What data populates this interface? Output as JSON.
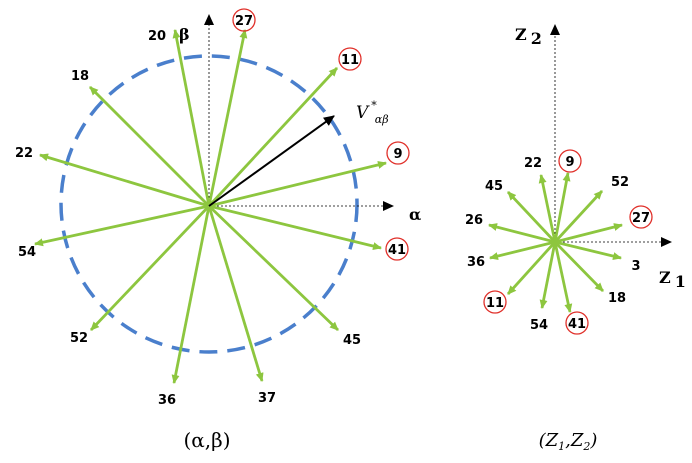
{
  "left_diagram": {
    "caption": "(α,β)",
    "axis_alpha": "α",
    "axis_beta": "β",
    "reference_vector": {
      "symbol": "V",
      "superscript": "*",
      "subscript": "αβ"
    },
    "vectors": [
      {
        "label": "27",
        "circled": true
      },
      {
        "label": "11",
        "circled": true
      },
      {
        "label": "9",
        "circled": true
      },
      {
        "label": "41",
        "circled": true
      },
      {
        "label": "20",
        "circled": false
      },
      {
        "label": "18",
        "circled": false
      },
      {
        "label": "22",
        "circled": false
      },
      {
        "label": "54",
        "circled": false
      },
      {
        "label": "52",
        "circled": false
      },
      {
        "label": "36",
        "circled": false
      },
      {
        "label": "37",
        "circled": false
      },
      {
        "label": "45",
        "circled": false
      }
    ]
  },
  "right_diagram": {
    "caption_z1": "Z",
    "caption_z1_sub": "1",
    "caption_z2": "Z",
    "caption_z2_sub": "2",
    "axis_z1": "Z",
    "axis_z1_sub": "1",
    "axis_z2": "Z",
    "axis_z2_sub": "2",
    "vectors": [
      {
        "label": "9",
        "circled": true
      },
      {
        "label": "27",
        "circled": true
      },
      {
        "label": "11",
        "circled": true
      },
      {
        "label": "41",
        "circled": true
      },
      {
        "label": "22",
        "circled": false
      },
      {
        "label": "52",
        "circled": false
      },
      {
        "label": "45",
        "circled": false
      },
      {
        "label": "26",
        "circled": false
      },
      {
        "label": "36",
        "circled": false
      },
      {
        "label": "3",
        "circled": false
      },
      {
        "label": "18",
        "circled": false
      },
      {
        "label": "54",
        "circled": false
      }
    ]
  },
  "colors": {
    "vector": "#8dc63f",
    "circle": "#4a7fcc",
    "marker": "#e0302a",
    "axis": "#000000"
  }
}
